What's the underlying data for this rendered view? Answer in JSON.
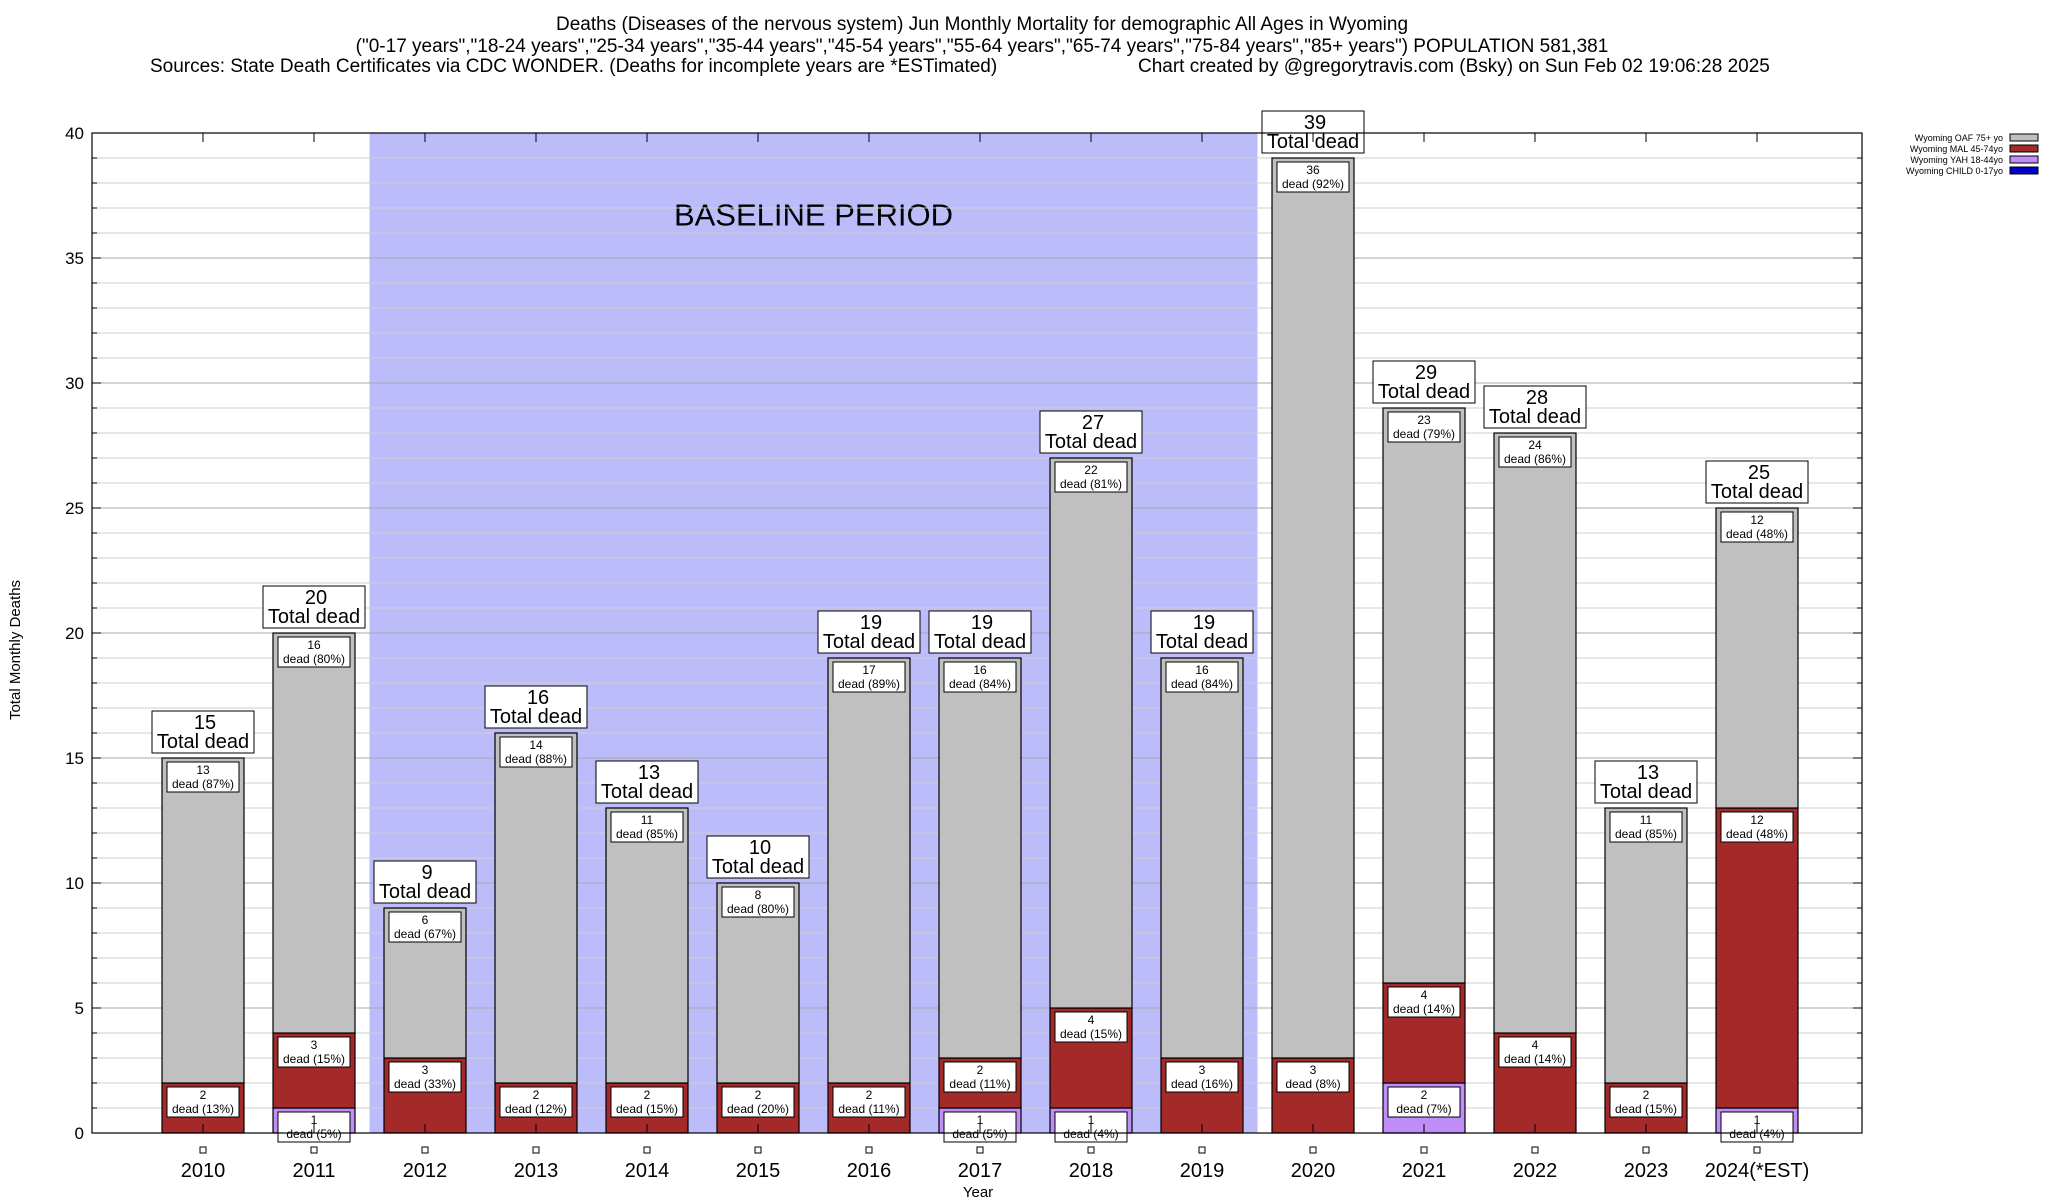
{
  "header": {
    "title_line1": "Deaths (Diseases of the nervous system) Jun Monthly Mortality for demographic All Ages in Wyoming",
    "title_line2": "(\"0-17 years\",\"18-24 years\",\"25-34 years\",\"35-44 years\",\"45-54 years\",\"55-64 years\",\"65-74 years\",\"75-84 years\",\"85+ years\") POPULATION 581,381",
    "sources": "Sources: State Death Certificates via CDC WONDER. (Deaths for incomplete years are *ESTimated)",
    "credit": "Chart created by @gregorytravis.com (Bsky) on Sun Feb 02 19:06:28 2025"
  },
  "chart_data": {
    "type": "bar",
    "stacked": true,
    "xlabel": "Year",
    "ylabel": "Total Monthly Deaths",
    "ylim": [
      0,
      40
    ],
    "y_major_ticks": [
      0,
      5,
      10,
      15,
      20,
      25,
      30,
      35,
      40
    ],
    "grid": true,
    "legend_position": "top-right",
    "baseline": {
      "label": "BASELINE PERIOD",
      "from": "2012",
      "to": "2019",
      "color": "#bcbcfa"
    },
    "categories": [
      "2010",
      "2011",
      "2012",
      "2013",
      "2014",
      "2015",
      "2016",
      "2017",
      "2018",
      "2019",
      "2020",
      "2021",
      "2022",
      "2023",
      "2024(*EST)"
    ],
    "totals": [
      15,
      20,
      9,
      16,
      13,
      10,
      19,
      19,
      27,
      19,
      39,
      29,
      28,
      13,
      25
    ],
    "total_suffix": "Total dead",
    "segment_suffix": "dead",
    "series": [
      {
        "name": "Wyoming CHILD 0-17yo",
        "color": "#0000c8",
        "values": [
          0,
          0,
          0,
          0,
          0,
          0,
          0,
          0,
          0,
          0,
          0,
          0,
          0,
          0,
          0
        ],
        "pct": [
          "",
          "",
          "",
          "",
          "",
          "",
          "",
          "",
          "",
          "",
          "",
          "",
          "",
          "",
          ""
        ]
      },
      {
        "name": "Wyoming YAH 18-44yo",
        "color": "#c08cf8",
        "values": [
          0,
          1,
          0,
          0,
          0,
          0,
          0,
          1,
          1,
          0,
          0,
          2,
          0,
          0,
          1
        ],
        "pct": [
          "",
          "5%",
          "",
          "",
          "",
          "",
          "",
          "5%",
          "4%",
          "",
          "",
          "7%",
          "",
          "",
          "4%"
        ]
      },
      {
        "name": "Wyoming MAL 45-74yo",
        "color": "#a42a2a",
        "values": [
          2,
          3,
          3,
          2,
          2,
          2,
          2,
          2,
          4,
          3,
          3,
          4,
          4,
          2,
          12
        ],
        "pct": [
          "13%",
          "15%",
          "33%",
          "12%",
          "15%",
          "20%",
          "11%",
          "11%",
          "15%",
          "16%",
          "8%",
          "14%",
          "14%",
          "15%",
          "48%"
        ]
      },
      {
        "name": "Wyoming OAF 75+ yo",
        "color": "#c0c0c0",
        "values": [
          13,
          16,
          6,
          14,
          11,
          8,
          17,
          16,
          22,
          16,
          36,
          23,
          24,
          11,
          12
        ],
        "pct": [
          "87%",
          "80%",
          "67%",
          "88%",
          "85%",
          "80%",
          "89%",
          "84%",
          "81%",
          "84%",
          "92%",
          "79%",
          "86%",
          "85%",
          "48%"
        ]
      }
    ]
  }
}
